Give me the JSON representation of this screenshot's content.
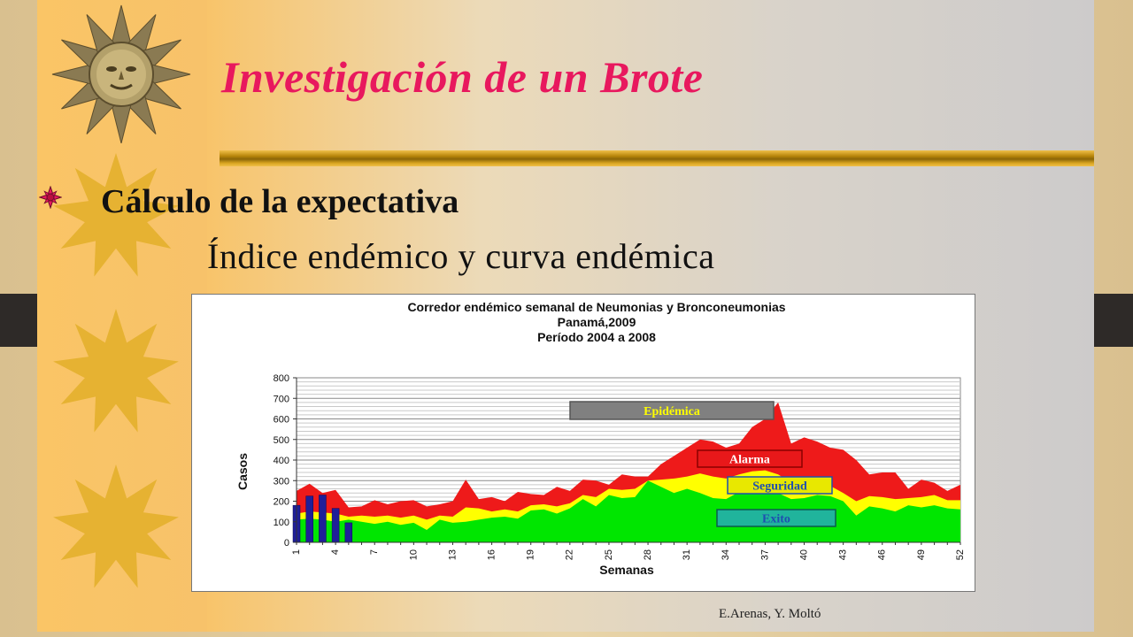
{
  "slide": {
    "title": "Investigación de un Brote",
    "bullet": "Cálculo de la expectativa",
    "subtitle": "Índice endémico y curva endémica",
    "credit": "E.Arenas, Y. Moltó",
    "colors": {
      "title": "#e8185e",
      "rule": "#b8860b"
    },
    "icons": [
      "sun-icon",
      "bullet-star-icon"
    ]
  },
  "chart_data": {
    "type": "area",
    "title_lines": [
      "Corredor endémico semanal de Neumonias y Bronconeumonias",
      "Panamá,2009",
      "Período 2004 a 2008"
    ],
    "xlabel": "Semanas",
    "ylabel": "Casos",
    "ylim": [
      0,
      800
    ],
    "yticks": [
      0,
      100,
      200,
      300,
      400,
      500,
      600,
      700,
      800
    ],
    "xticks": [
      1,
      4,
      7,
      10,
      13,
      16,
      19,
      22,
      25,
      28,
      31,
      34,
      37,
      40,
      43,
      46,
      49,
      52
    ],
    "grid": true,
    "x": [
      1,
      2,
      3,
      4,
      5,
      6,
      7,
      8,
      9,
      10,
      11,
      12,
      13,
      14,
      15,
      16,
      17,
      18,
      19,
      20,
      21,
      22,
      23,
      24,
      25,
      26,
      27,
      28,
      29,
      30,
      31,
      32,
      33,
      34,
      35,
      36,
      37,
      38,
      39,
      40,
      41,
      42,
      43,
      44,
      45,
      46,
      47,
      48,
      49,
      50,
      51,
      52
    ],
    "series": [
      {
        "name": "Exito",
        "color": "#00e600",
        "values": [
          110,
          115,
          110,
          100,
          110,
          100,
          90,
          100,
          85,
          95,
          60,
          110,
          95,
          100,
          110,
          120,
          125,
          115,
          155,
          160,
          140,
          165,
          210,
          175,
          230,
          215,
          220,
          300,
          270,
          240,
          260,
          240,
          215,
          210,
          245,
          235,
          245,
          240,
          210,
          215,
          230,
          225,
          200,
          130,
          175,
          165,
          150,
          180,
          170,
          180,
          165,
          160
        ]
      },
      {
        "name": "Seguridad",
        "color": "#ffff00",
        "values": [
          140,
          150,
          145,
          140,
          125,
          130,
          125,
          130,
          120,
          130,
          110,
          130,
          125,
          170,
          165,
          150,
          160,
          150,
          180,
          185,
          175,
          190,
          230,
          220,
          260,
          255,
          260,
          300,
          305,
          310,
          320,
          335,
          320,
          310,
          330,
          345,
          350,
          330,
          290,
          270,
          280,
          275,
          240,
          200,
          225,
          220,
          210,
          215,
          220,
          230,
          205,
          205
        ]
      },
      {
        "name": "Alarma",
        "color": "#ee1a1a",
        "values": [
          250,
          285,
          240,
          255,
          170,
          175,
          205,
          185,
          200,
          205,
          175,
          185,
          200,
          305,
          210,
          220,
          200,
          245,
          235,
          230,
          270,
          250,
          305,
          300,
          280,
          330,
          320,
          320,
          380,
          420,
          460,
          500,
          490,
          460,
          480,
          560,
          600,
          680,
          480,
          510,
          490,
          460,
          450,
          400,
          330,
          340,
          340,
          260,
          305,
          290,
          250,
          280
        ]
      }
    ],
    "bars": {
      "name": "2009",
      "color": "#1f1f99",
      "x": [
        1,
        2,
        3,
        4,
        5
      ],
      "values": [
        180,
        225,
        230,
        165,
        95
      ]
    },
    "annotations": [
      "Epidémica",
      "Alarma",
      "Seguridad",
      "Exito"
    ]
  }
}
